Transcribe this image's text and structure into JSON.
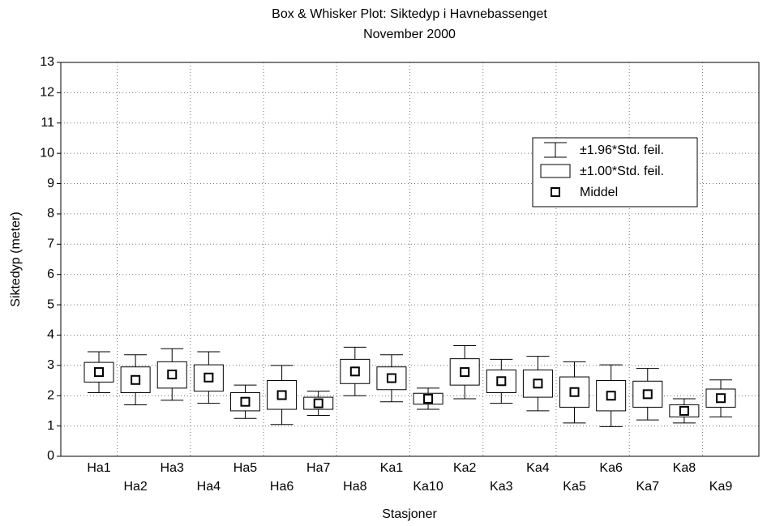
{
  "chart_data": {
    "type": "box",
    "title": "Box & Whisker Plot: Siktedyp i Havnebassenget",
    "subtitle": "November 2000",
    "x_label": "Stasjoner",
    "y_label": "Siktedyp (meter)",
    "categories": [
      "Ha1",
      "Ha2",
      "Ha3",
      "Ha4",
      "Ha5",
      "Ha6",
      "Ha7",
      "Ha8",
      "Ka1",
      "Ka10",
      "Ka2",
      "Ka3",
      "Ka4",
      "Ka5",
      "Ka6",
      "Ka7",
      "Ka8",
      "Ka9"
    ],
    "mean": [
      2.78,
      2.52,
      2.7,
      2.6,
      1.8,
      2.02,
      1.75,
      2.8,
      2.58,
      1.9,
      2.78,
      2.48,
      2.4,
      2.12,
      2.0,
      2.05,
      1.5,
      1.92
    ],
    "box_low": [
      2.45,
      2.1,
      2.25,
      2.15,
      1.5,
      1.55,
      1.55,
      2.4,
      2.2,
      1.72,
      2.35,
      2.1,
      1.95,
      1.62,
      1.5,
      1.62,
      1.3,
      1.62
    ],
    "box_high": [
      3.1,
      2.95,
      3.12,
      3.02,
      2.1,
      2.5,
      1.95,
      3.2,
      2.95,
      2.08,
      3.22,
      2.85,
      2.85,
      2.62,
      2.5,
      2.48,
      1.7,
      2.22
    ],
    "whisker_low": [
      2.1,
      1.7,
      1.85,
      1.75,
      1.25,
      1.05,
      1.35,
      2.0,
      1.8,
      1.55,
      1.9,
      1.75,
      1.5,
      1.1,
      0.98,
      1.2,
      1.1,
      1.3
    ],
    "whisker_high": [
      3.45,
      3.35,
      3.55,
      3.45,
      2.35,
      3.0,
      2.15,
      3.6,
      3.35,
      2.25,
      3.65,
      3.2,
      3.3,
      3.12,
      3.02,
      2.9,
      1.9,
      2.52
    ],
    "legend": [
      "±1.96*Std. feil.",
      "±1.00*Std. feil.",
      "Middel"
    ],
    "ylim": [
      0,
      13
    ],
    "yticks": [
      0,
      1,
      2,
      3,
      4,
      5,
      6,
      7,
      8,
      9,
      10,
      11,
      12,
      13
    ],
    "grid": true
  }
}
